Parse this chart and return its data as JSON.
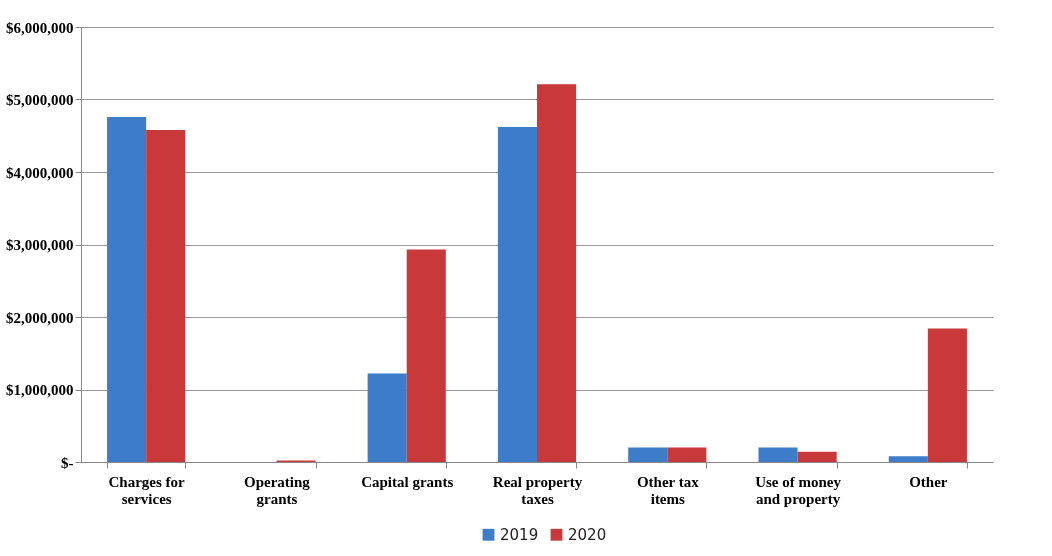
{
  "chart_data": {
    "type": "bar",
    "categories": [
      "Charges for services",
      "Operating grants",
      "Capital grants",
      "Real property taxes",
      "Other tax items",
      "Use of money and property",
      "Other"
    ],
    "series": [
      {
        "name": "2019",
        "color": "#3d7cc9",
        "values": [
          4760000,
          0,
          1220000,
          4620000,
          200000,
          200000,
          80000
        ]
      },
      {
        "name": "2020",
        "color": "#c9393a",
        "values": [
          4580000,
          20000,
          2930000,
          5210000,
          200000,
          140000,
          1840000
        ]
      }
    ],
    "ylim": [
      0,
      6000000
    ],
    "yticks": [
      {
        "value": 0,
        "label": "$-"
      },
      {
        "value": 1000000,
        "label": "$1,000,000"
      },
      {
        "value": 2000000,
        "label": "$2,000,000"
      },
      {
        "value": 3000000,
        "label": "$3,000,000"
      },
      {
        "value": 4000000,
        "label": "$4,000,000"
      },
      {
        "value": 5000000,
        "label": "$5,000,000"
      },
      {
        "value": 6000000,
        "label": "$6,000,000"
      }
    ],
    "grid": "y",
    "legend": "bottom"
  }
}
